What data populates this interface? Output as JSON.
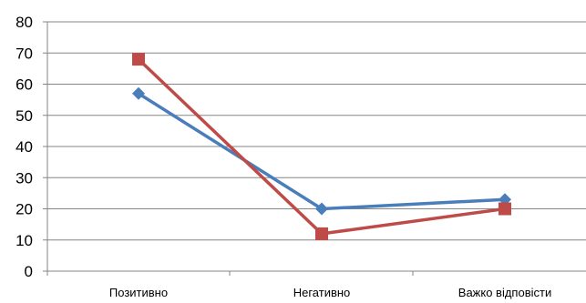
{
  "chart_data": {
    "type": "line",
    "title": "",
    "xlabel": "",
    "ylabel": "",
    "categories": [
      "Позитивно",
      "Негативно",
      "Важко відповісти"
    ],
    "ylim": [
      0,
      80
    ],
    "yticks": [
      0,
      10,
      20,
      30,
      40,
      50,
      60,
      70,
      80
    ],
    "grid": true,
    "legend": "none",
    "series": [
      {
        "values": [
          57,
          20,
          23
        ],
        "color": "#4a7ebb",
        "marker": "diamond"
      },
      {
        "values": [
          68,
          12,
          20
        ],
        "color": "#be4b48",
        "marker": "square"
      }
    ]
  }
}
